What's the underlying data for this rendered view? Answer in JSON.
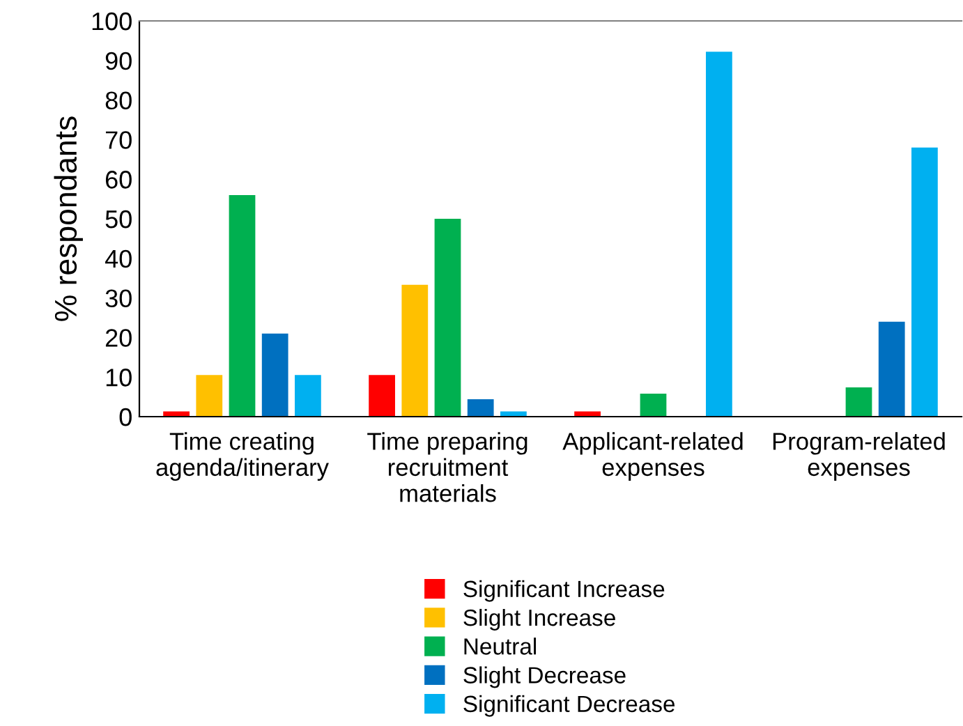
{
  "chart_data": {
    "type": "bar",
    "ylabel": "% respondants",
    "categories": [
      "Time creating\nagenda/itinerary",
      "Time preparing\nrecruitment\nmaterials",
      "Applicant-related\nexpenses",
      "Program-related\nexpenses"
    ],
    "series": [
      {
        "name": "Significant Increase",
        "color": "#ff0000",
        "values": [
          1.3,
          10.5,
          1.3,
          0
        ]
      },
      {
        "name": "Slight Increase",
        "color": "#ffc000",
        "values": [
          10.5,
          33.3,
          0,
          0
        ]
      },
      {
        "name": "Neutral",
        "color": "#00b050",
        "values": [
          56,
          50,
          5.8,
          7.4
        ]
      },
      {
        "name": "Slight Decrease",
        "color": "#0070c0",
        "values": [
          21,
          4.4,
          0,
          24
        ]
      },
      {
        "name": "Significant Decrease",
        "color": "#00b0f0",
        "values": [
          10.5,
          1.3,
          92.2,
          68
        ]
      }
    ],
    "ylim": [
      0,
      100
    ],
    "yticks": [
      0,
      10,
      20,
      30,
      40,
      50,
      60,
      70,
      80,
      90,
      100
    ],
    "grid": false,
    "legend": "bottom"
  }
}
